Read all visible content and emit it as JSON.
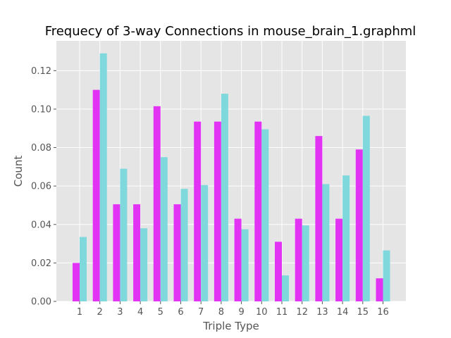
{
  "chart_data": {
    "type": "bar",
    "title": "Frequecy of 3-way Connections in mouse_brain_1.graphml",
    "xlabel": "Triple Type",
    "ylabel": "Count",
    "categories": [
      "1",
      "2",
      "3",
      "4",
      "5",
      "6",
      "7",
      "8",
      "9",
      "10",
      "11",
      "12",
      "13",
      "14",
      "15",
      "16"
    ],
    "ylim": [
      0,
      0.1355
    ],
    "yticks": [
      "0.00",
      "0.02",
      "0.04",
      "0.06",
      "0.08",
      "0.10",
      "0.12"
    ],
    "grid": true,
    "series": [
      {
        "color": "#e233f5",
        "values": [
          0.02,
          0.11,
          0.0505,
          0.0505,
          0.1015,
          0.0505,
          0.0935,
          0.0935,
          0.043,
          0.0935,
          0.031,
          0.043,
          0.086,
          0.043,
          0.079,
          0.012
        ]
      },
      {
        "color": "#7fd8dc",
        "values": [
          0.0335,
          0.129,
          0.069,
          0.038,
          0.075,
          0.0585,
          0.0605,
          0.108,
          0.0375,
          0.0895,
          0.0135,
          0.0395,
          0.061,
          0.0655,
          0.0965,
          0.0265
        ]
      }
    ]
  }
}
